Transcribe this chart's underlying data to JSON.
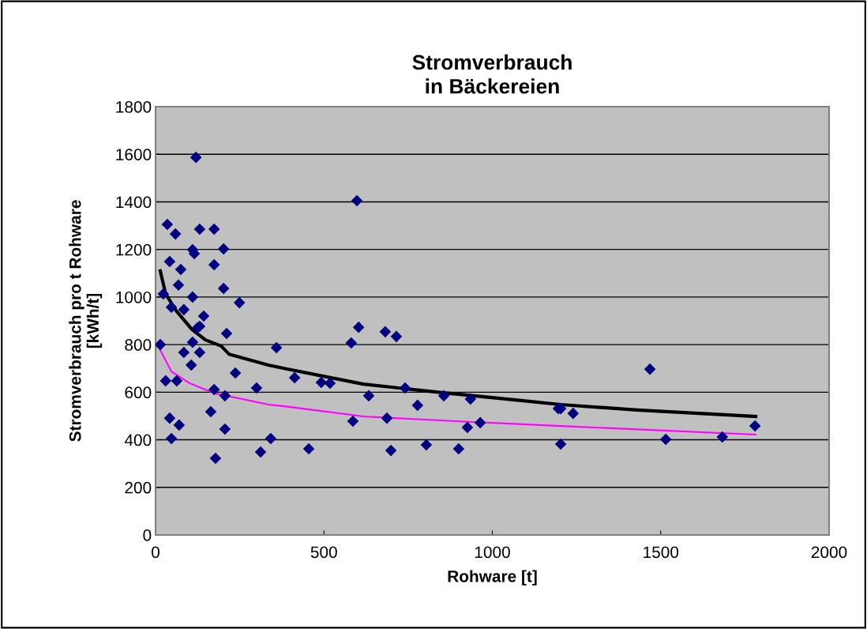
{
  "chart_data": {
    "type": "scatter",
    "title": "Stromverbrauch\nin Bäckereien",
    "xlabel": "Rohware [t]",
    "ylabel": "Stromverbrauch pro t Rohware\n[kWh/t]",
    "xlim": [
      0,
      2000
    ],
    "xticks": [
      0,
      500,
      1000,
      1500,
      2000
    ],
    "ylim": [
      0,
      1800
    ],
    "yticks": [
      0,
      200,
      400,
      600,
      800,
      1000,
      1200,
      1400,
      1600,
      1800
    ],
    "grid": "y",
    "legend": false,
    "series": [
      {
        "color": "#000080",
        "marker": "diamond",
        "x": [
          120,
          35,
          59,
          131,
          174,
          110,
          115,
          202,
          42,
          75,
          174,
          68,
          202,
          23,
          110,
          249,
          47,
          84,
          143,
          124,
          131,
          211,
          110,
          14,
          30,
          63,
          106,
          84,
          131,
          359,
          164,
          42,
          70,
          47,
          178,
          206,
          174,
          237,
          300,
          312,
          342,
          206,
          598,
          603,
          581,
          682,
          715,
          413,
          492,
          518,
          741,
          633,
          778,
          856,
          935,
          586,
          687,
          964,
          926,
          455,
          699,
          804,
          900,
          1196,
          1468,
          1203,
          1240,
          1203,
          1515,
          1683,
          1780
        ],
        "values": [
          1587,
          1305,
          1265,
          1285,
          1285,
          1199,
          1182,
          1202,
          1149,
          1116,
          1136,
          1050,
          1036,
          1013,
          1000,
          976,
          957,
          947,
          920,
          870,
          877,
          847,
          810,
          800,
          648,
          648,
          714,
          767,
          767,
          787,
          518,
          491,
          462,
          405,
          322,
          445,
          611,
          681,
          618,
          349,
          405,
          585,
          1405,
          873,
          807,
          854,
          834,
          661,
          641,
          638,
          618,
          585,
          545,
          585,
          571,
          478,
          491,
          472,
          452,
          362,
          355,
          379,
          362,
          531,
          697,
          531,
          511,
          382,
          402,
          412,
          458
        ]
      },
      {
        "type": "line",
        "color": "#000000",
        "x": [
          14,
          30,
          61,
          108,
          148,
          195,
          218,
          335,
          382,
          617,
          851,
          1086,
          1203,
          1430,
          1782
        ],
        "values": [
          1110,
          1013,
          943,
          864,
          820,
          794,
          760,
          714,
          700,
          634,
          598,
          565,
          548,
          525,
          498
        ]
      },
      {
        "type": "line",
        "color": "#ff00ff",
        "x": [
          14,
          47,
          101,
          178,
          258,
          335,
          382,
          617,
          891,
          1203,
          1782
        ],
        "values": [
          777,
          687,
          638,
          594,
          571,
          548,
          541,
          498,
          478,
          458,
          422
        ]
      }
    ]
  }
}
